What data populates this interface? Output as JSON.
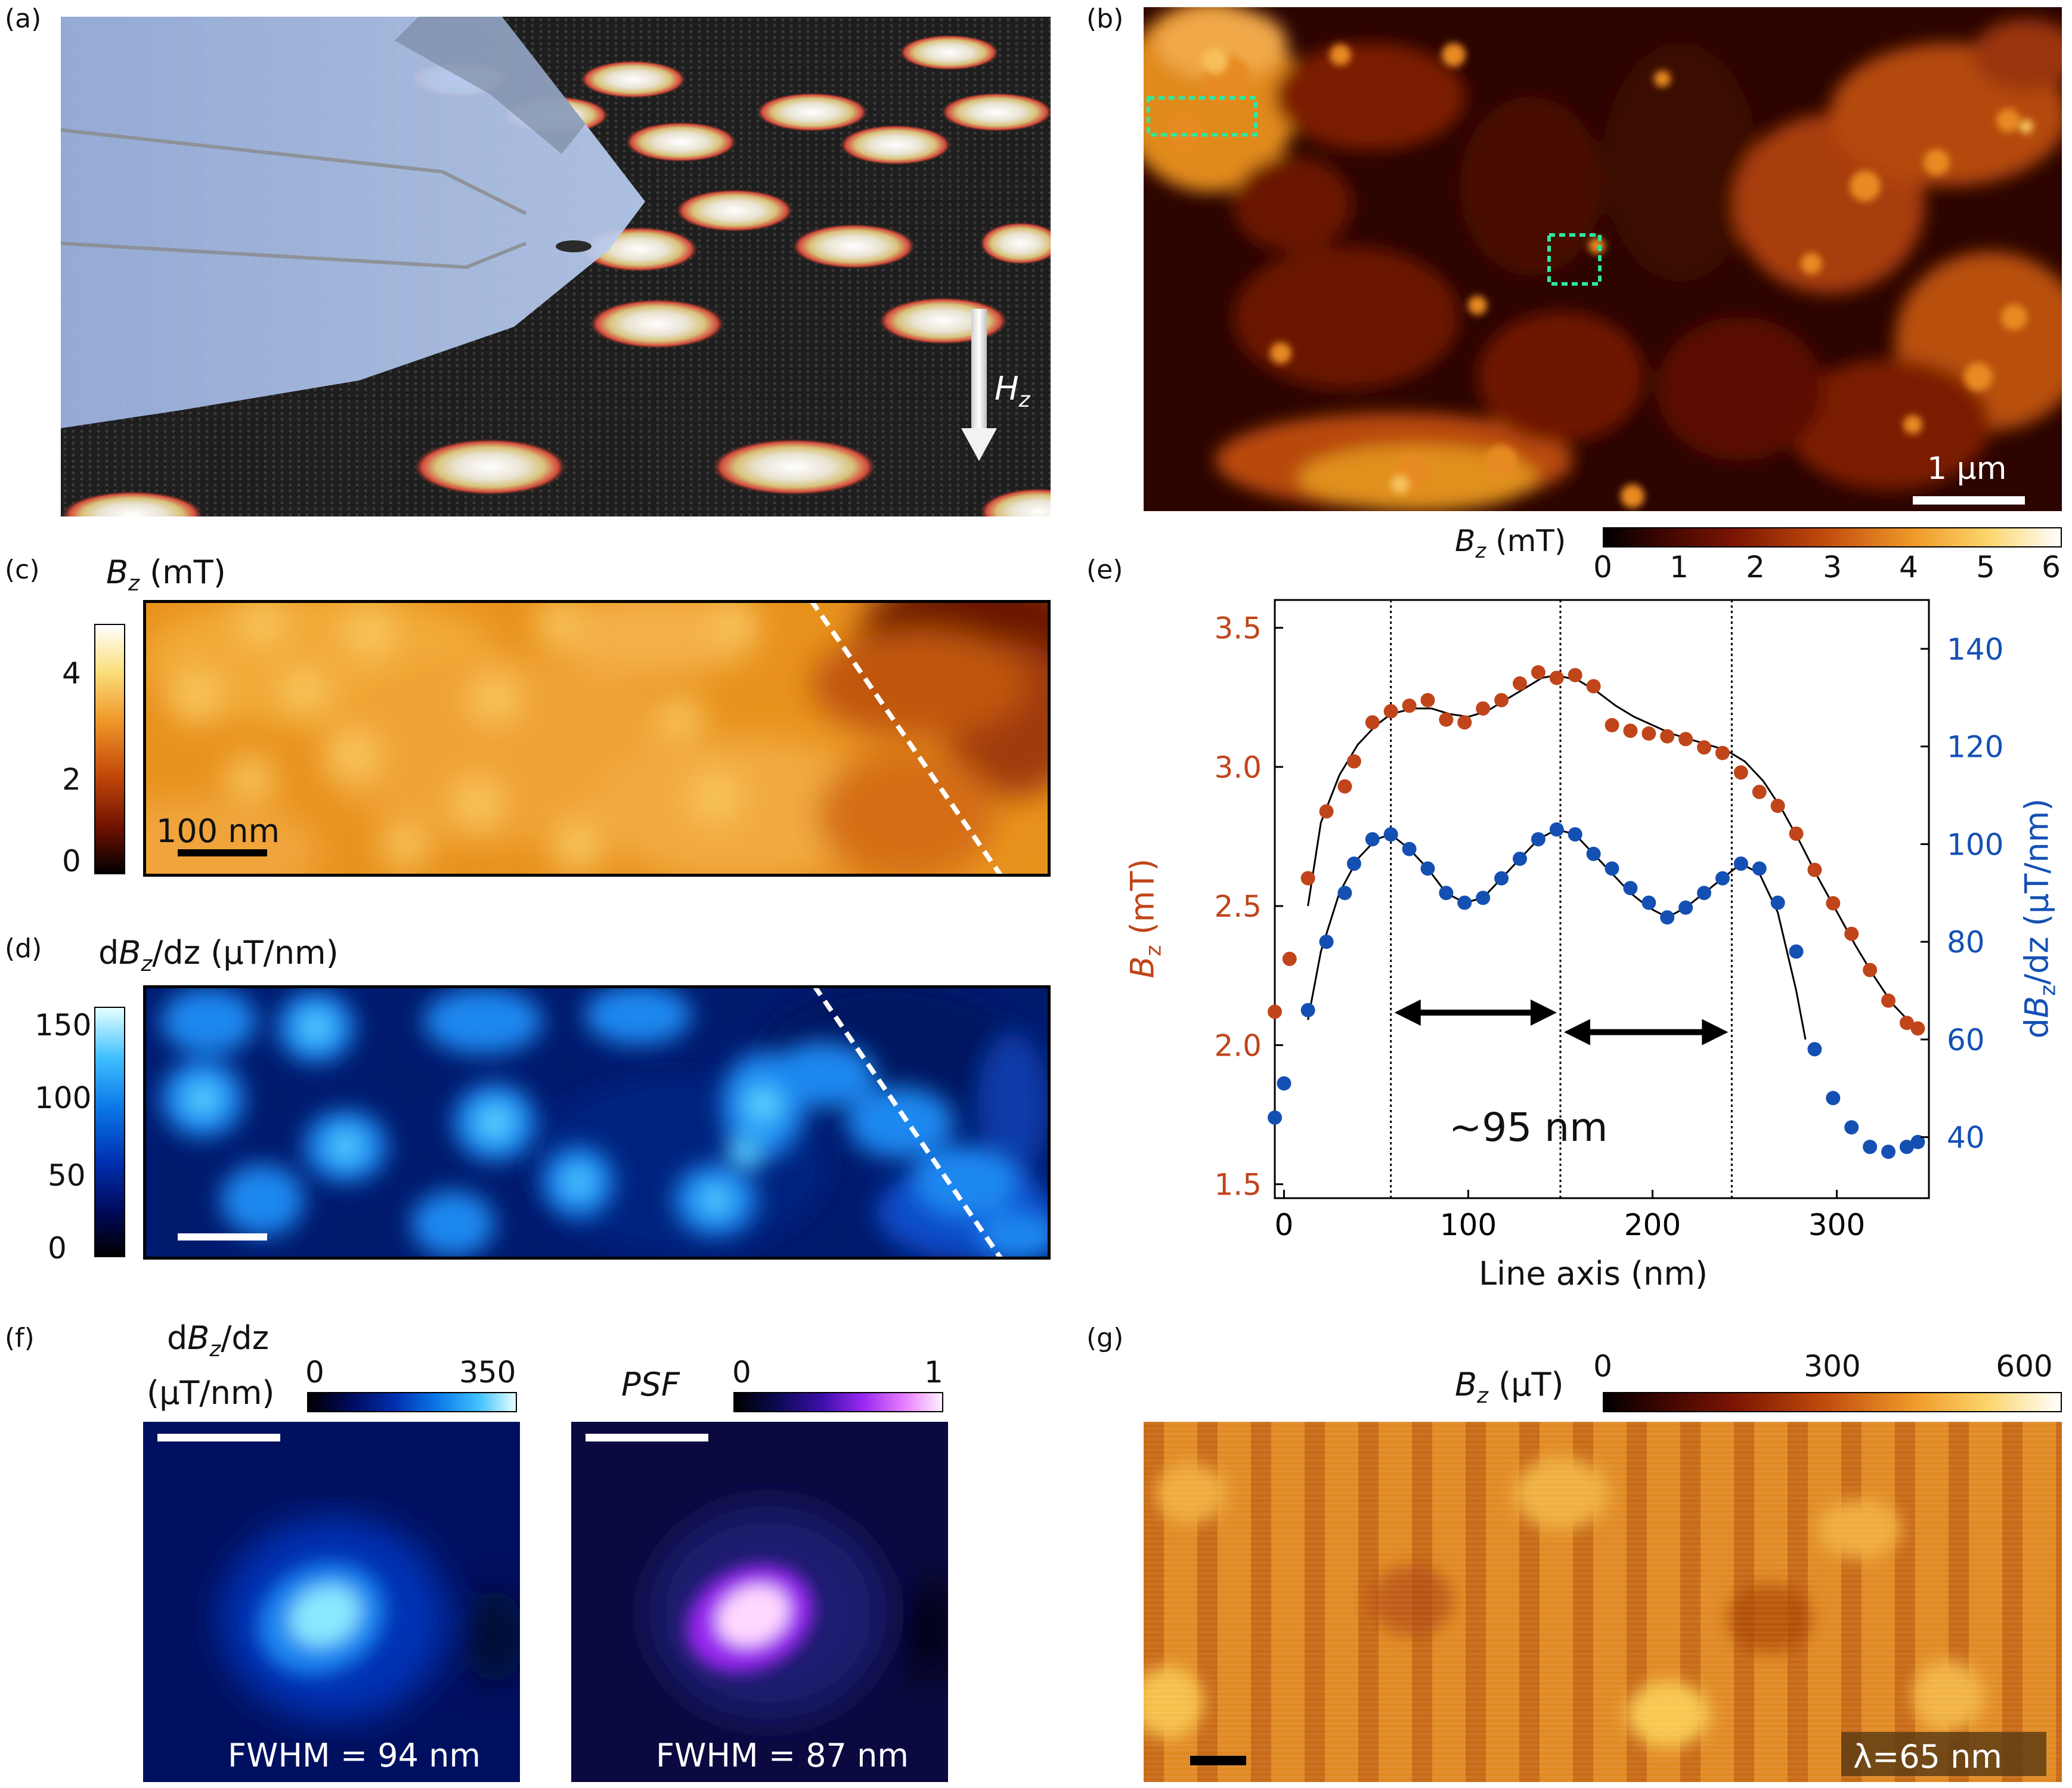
{
  "panels": {
    "a": {
      "label": "(a)",
      "field_label": "H",
      "field_sub": "z"
    },
    "b": {
      "label": "(b)",
      "scalebar": "1 μm",
      "colorbar": {
        "sym": "B",
        "sub": "z",
        "unit": " (mT)",
        "ticks": [
          "0",
          "1",
          "2",
          "3",
          "4",
          "5",
          "6"
        ]
      }
    },
    "c": {
      "label": "(c)",
      "title_sym": "B",
      "title_sub": "z",
      "title_unit": " (mT)",
      "colorbar_ticks": [
        "4",
        "2",
        "0"
      ],
      "scalebar": "100 nm"
    },
    "d": {
      "label": "(d)",
      "title_pre": "d",
      "title_sym": "B",
      "title_sub": "z",
      "title_unit": "/dz (μT/nm)",
      "colorbar_ticks": [
        "150",
        "100",
        "50",
        "0"
      ]
    },
    "e": {
      "label": "(e)"
    },
    "f": {
      "label": "(f)",
      "left": {
        "title_pre": "d",
        "title_sym": "B",
        "title_sub": "z",
        "title_post": "/dz",
        "unit": "(μT/nm)",
        "cb_min": "0",
        "cb_max": "350",
        "fwhm": "FWHM = 94 nm"
      },
      "right": {
        "title": "PSF",
        "cb_min": "0",
        "cb_max": "1",
        "fwhm": "FWHM = 87 nm"
      }
    },
    "g": {
      "label": "(g)",
      "colorbar": {
        "sym": "B",
        "sub": "z",
        "unit": " (μT)",
        "ticks": [
          "0",
          "300",
          "600"
        ]
      },
      "lambda": "λ=65 nm"
    }
  },
  "colors": {
    "bz": "#c0451a",
    "dbz": "#1450b4",
    "dashed": "#ffffff",
    "roi": "#2ee8a0"
  },
  "chart_data": {
    "type": "scatter",
    "title": "",
    "xlabel": "Line axis (nm)",
    "ylabel_left": "B_z (mT)",
    "ylabel_right": "dB_z/dz (μT/nm)",
    "xlim": [
      -5,
      350
    ],
    "ylim_left": [
      1.45,
      3.6
    ],
    "ylim_right": [
      27.5,
      150
    ],
    "x_ticks": [
      "0",
      "100",
      "200",
      "300"
    ],
    "y_ticks_left": [
      "1.5",
      "2.0",
      "2.5",
      "3.0",
      "3.5"
    ],
    "y_ticks_right": [
      "40",
      "60",
      "80",
      "100",
      "120",
      "140"
    ],
    "annotation": "~95 nm",
    "vlines": [
      58,
      150,
      243
    ],
    "series": [
      {
        "name": "Bz",
        "axis": "left",
        "x": [
          -5,
          3,
          13,
          23,
          33,
          38,
          48,
          58,
          68,
          78,
          88,
          98,
          108,
          118,
          128,
          138,
          148,
          158,
          168,
          178,
          188,
          198,
          208,
          218,
          228,
          238,
          248,
          258,
          268,
          278,
          288,
          298,
          308,
          318,
          328,
          338,
          344
        ],
        "y": [
          2.12,
          2.31,
          2.6,
          2.84,
          2.93,
          3.02,
          3.16,
          3.2,
          3.22,
          3.24,
          3.17,
          3.16,
          3.21,
          3.24,
          3.3,
          3.34,
          3.32,
          3.33,
          3.29,
          3.15,
          3.13,
          3.12,
          3.11,
          3.1,
          3.07,
          3.05,
          2.98,
          2.91,
          2.86,
          2.76,
          2.63,
          2.51,
          2.4,
          2.27,
          2.16,
          2.08,
          2.06
        ]
      },
      {
        "name": "dBz/dz",
        "axis": "right",
        "x": [
          -5,
          0,
          13,
          23,
          33,
          38,
          48,
          58,
          68,
          78,
          88,
          98,
          108,
          118,
          128,
          138,
          148,
          158,
          168,
          178,
          188,
          198,
          208,
          218,
          228,
          238,
          248,
          258,
          268,
          278,
          288,
          298,
          308,
          318,
          328,
          338,
          344
        ],
        "y": [
          44,
          51,
          66,
          80,
          90,
          96,
          101,
          102,
          99,
          95,
          90,
          88,
          89,
          93,
          97,
          101,
          103,
          102,
          98,
          95,
          91,
          88,
          85,
          87,
          90,
          93,
          96,
          95,
          88,
          78,
          58,
          48,
          42,
          38,
          37,
          38,
          39
        ]
      },
      {
        "name": "Bz fit",
        "axis": "left",
        "style": "line",
        "x": [
          13,
          20,
          30,
          40,
          50,
          58,
          70,
          80,
          90,
          100,
          110,
          120,
          130,
          140,
          148,
          160,
          170,
          180,
          190,
          200,
          210,
          220,
          230,
          240,
          250,
          260,
          270,
          280,
          290,
          300,
          310,
          320,
          330,
          340,
          344
        ],
        "y": [
          2.5,
          2.8,
          2.97,
          3.08,
          3.15,
          3.19,
          3.21,
          3.21,
          3.19,
          3.18,
          3.2,
          3.24,
          3.28,
          3.32,
          3.33,
          3.31,
          3.27,
          3.22,
          3.18,
          3.15,
          3.12,
          3.1,
          3.08,
          3.06,
          3.02,
          2.95,
          2.85,
          2.73,
          2.6,
          2.48,
          2.36,
          2.25,
          2.15,
          2.08,
          2.06
        ]
      },
      {
        "name": "dBz/dz fit",
        "axis": "right",
        "style": "line",
        "x": [
          13,
          20,
          30,
          40,
          50,
          58,
          68,
          78,
          88,
          98,
          108,
          118,
          128,
          138,
          148,
          158,
          168,
          178,
          188,
          198,
          208,
          218,
          228,
          238,
          248,
          258,
          268,
          278,
          283
        ],
        "y": [
          64,
          78,
          90,
          97,
          101,
          102,
          99,
          95,
          90,
          88,
          89,
          93,
          97,
          101,
          103,
          102,
          98,
          94,
          90,
          87,
          85,
          87,
          90,
          93,
          96,
          94,
          86,
          70,
          60
        ]
      }
    ]
  }
}
